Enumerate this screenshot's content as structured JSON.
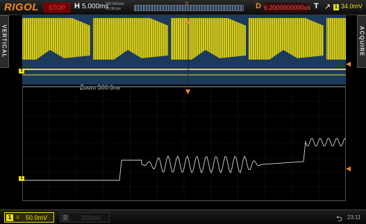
{
  "header": {
    "logo": "RIGOL",
    "run_state": "STOP",
    "horizontal_label": "H",
    "timebase": "5.000ms",
    "sample_rate": "500.0MSa/s",
    "memory_depth": "25.0M pts",
    "trigger_position_marker": "0",
    "delay_label": "D",
    "delay_value": "6.2000000000us",
    "trigger_label": "T",
    "trigger_slope_icon": "rising-edge-icon",
    "trigger_source": "1",
    "trigger_level": "34.0mV"
  },
  "side_tabs": {
    "left": "VERTICAL",
    "right": "ACQUIRE"
  },
  "zoom": {
    "label": "Zoom 500.0ns"
  },
  "footer": {
    "ch1": {
      "number": "1",
      "coupling": "=",
      "scale": "50.0mV"
    },
    "ch2": {
      "number": "2",
      "scale": "200mV"
    },
    "usb_icon": "usb-icon",
    "clock": "23:11"
  },
  "colors": {
    "ch1": "#e8e020",
    "trigger": "#f08a24",
    "stop": "#ff4040",
    "main_window_bg": "#1c3a5c",
    "grid": "#4a4a4a"
  }
}
